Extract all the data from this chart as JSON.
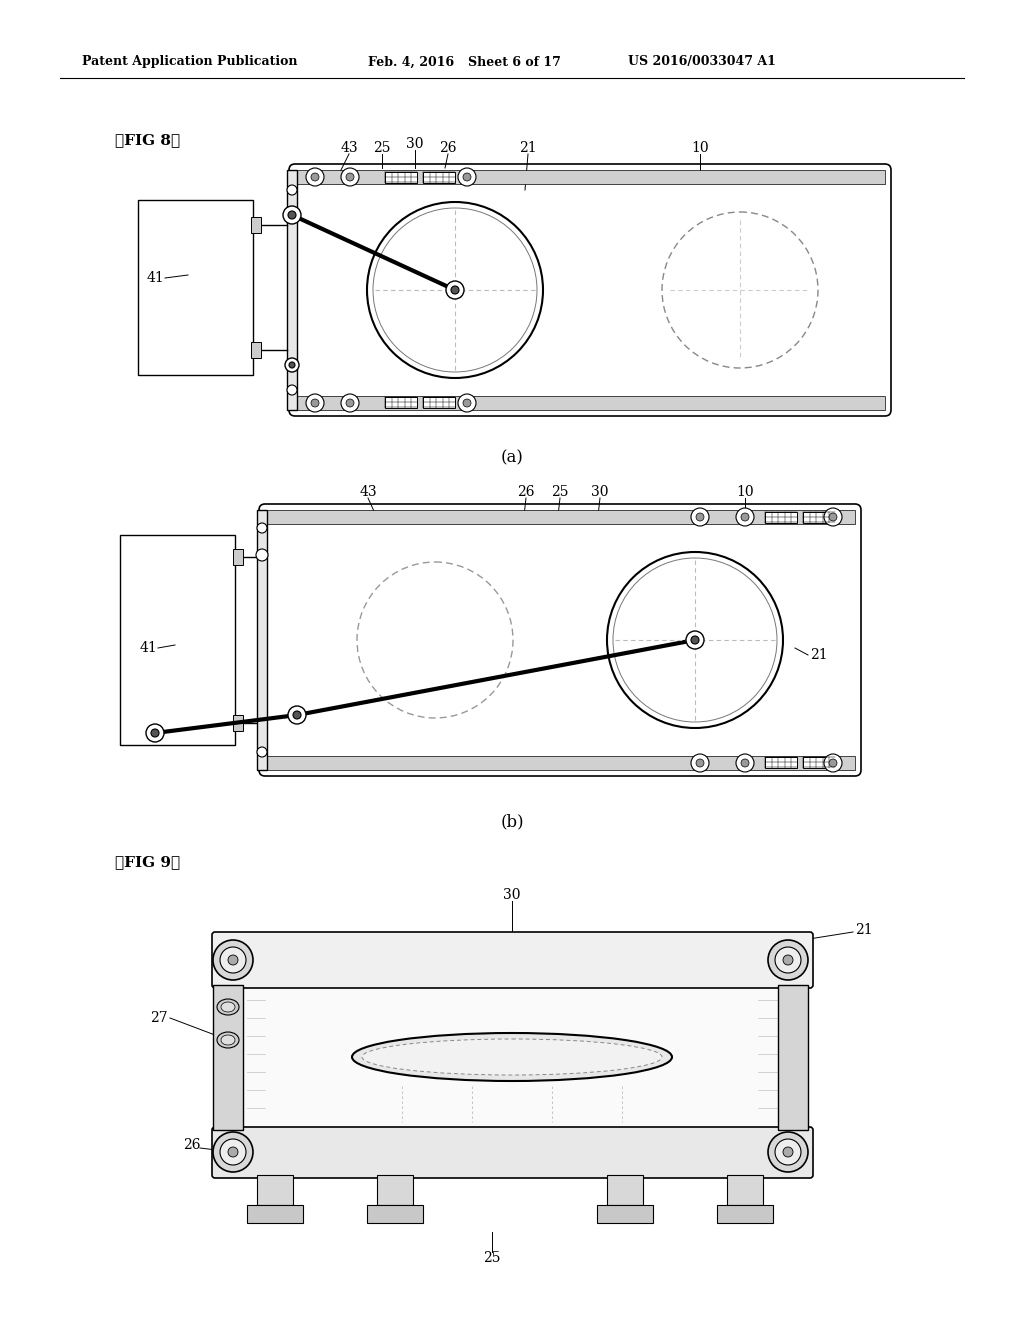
{
  "bg_color": "#ffffff",
  "header_text": "Patent Application Publication",
  "header_date": "Feb. 4, 2016",
  "header_sheet": "Sheet 6 of 17",
  "header_patent": "US 2016/0033047 A1",
  "fig8_label": "【FIG 8】",
  "fig9_label": "【FIG 9】",
  "caption_a": "(a)",
  "caption_b": "(b)",
  "line_color": "#000000",
  "gray1": "#aaaaaa",
  "gray2": "#cccccc",
  "gray3": "#888888",
  "label_fontsize": 10,
  "header_fontsize": 9,
  "fig_label_fontsize": 11,
  "caption_fontsize": 12
}
